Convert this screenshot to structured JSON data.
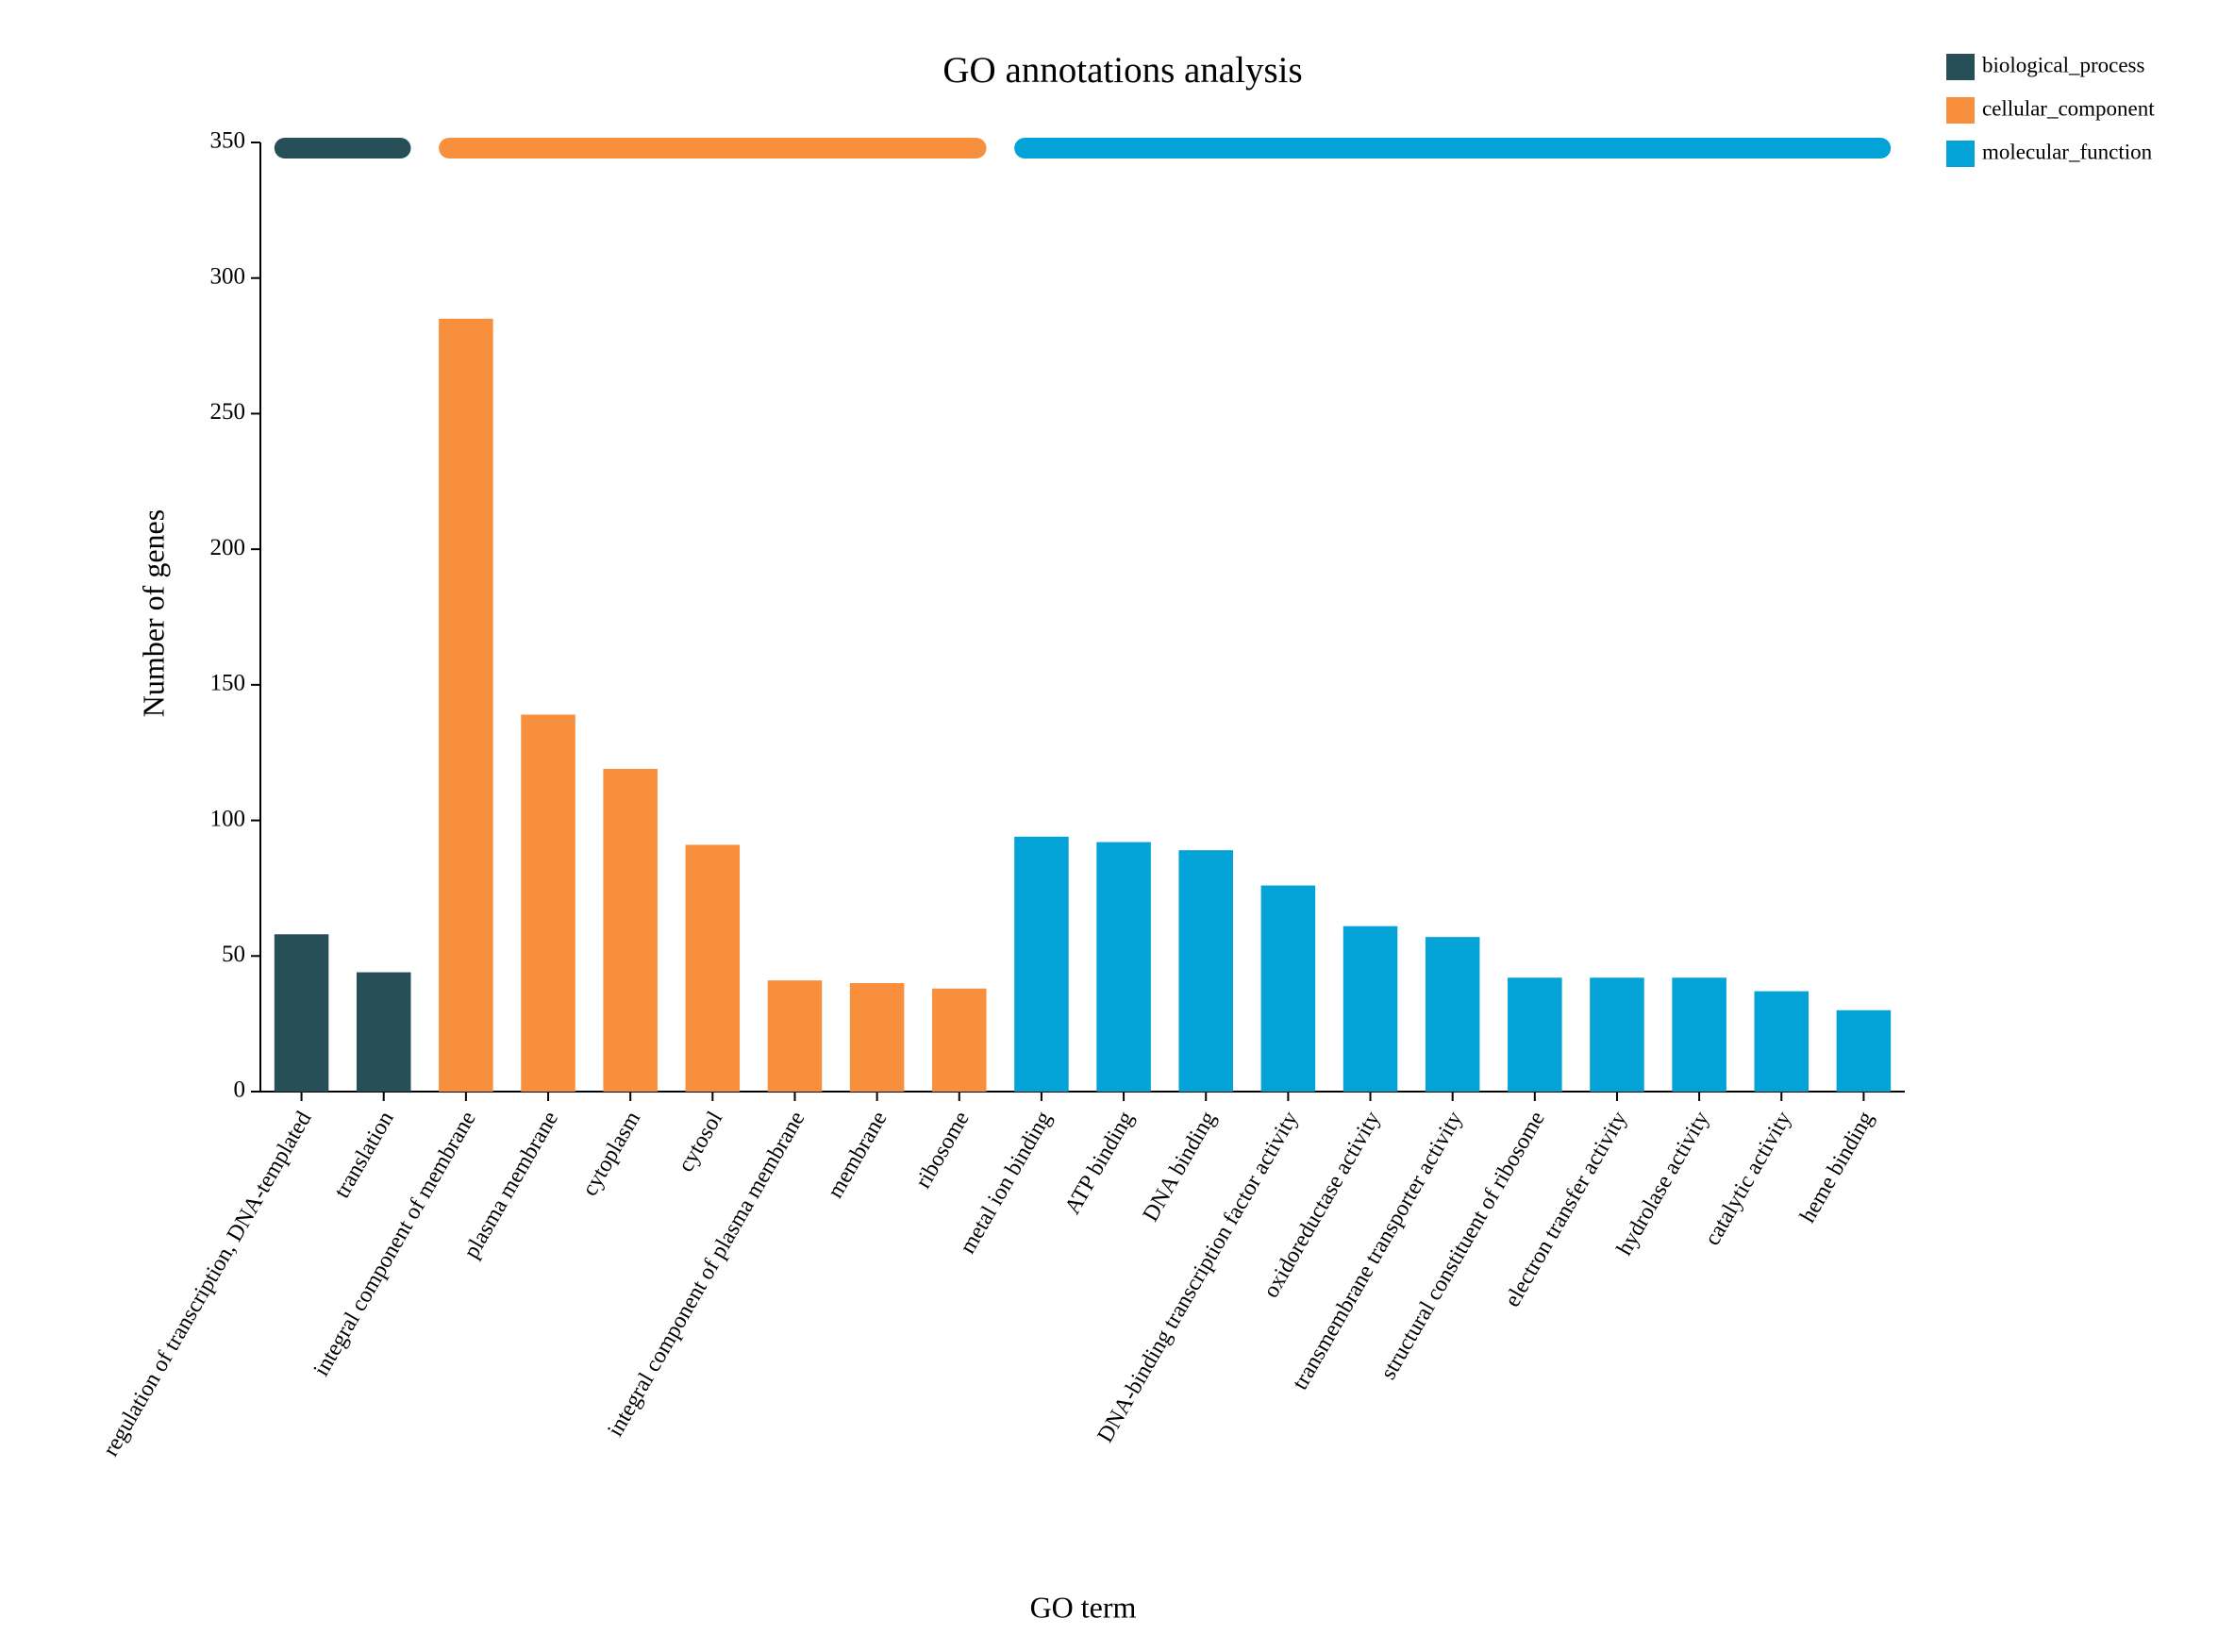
{
  "chart_data": {
    "type": "bar",
    "title": "GO annotations analysis",
    "x_label": "GO term",
    "y_label": "Number of genes",
    "categories": [
      "regulation of transcription, DNA-templated",
      "translation",
      "integral component of membrane",
      "plasma membrane",
      "cytoplasm",
      "cytosol",
      "integral component of plasma membrane",
      "membrane",
      "ribosome",
      "metal ion binding",
      "ATP binding",
      "DNA binding",
      "DNA-binding transcription factor activity",
      "oxidoreductase activity",
      "transmembrane transporter activity",
      "structural constituent of ribosome",
      "electron transfer activity",
      "hydrolase activity",
      "catalytic activity",
      "heme binding"
    ],
    "series": [
      {
        "name": "biological_process",
        "color": "#264f57",
        "values": [
          58,
          44,
          null,
          null,
          null,
          null,
          null,
          null,
          null,
          null,
          null,
          null,
          null,
          null,
          null,
          null,
          null,
          null,
          null,
          null
        ]
      },
      {
        "name": "cellular_component",
        "color": "#f88f3d",
        "values": [
          null,
          null,
          285,
          139,
          119,
          91,
          41,
          40,
          38,
          null,
          null,
          null,
          null,
          null,
          null,
          null,
          null,
          null,
          null,
          null
        ]
      },
      {
        "name": "molecular_function",
        "color": "#03a2d7",
        "values": [
          null,
          null,
          null,
          null,
          null,
          null,
          null,
          null,
          null,
          94,
          92,
          89,
          76,
          61,
          57,
          42,
          42,
          42,
          37,
          30
        ]
      }
    ],
    "ylim": [
      0,
      350
    ],
    "yticks": [
      0,
      50,
      100,
      150,
      200,
      250,
      300,
      350
    ],
    "legend": "top-right"
  }
}
